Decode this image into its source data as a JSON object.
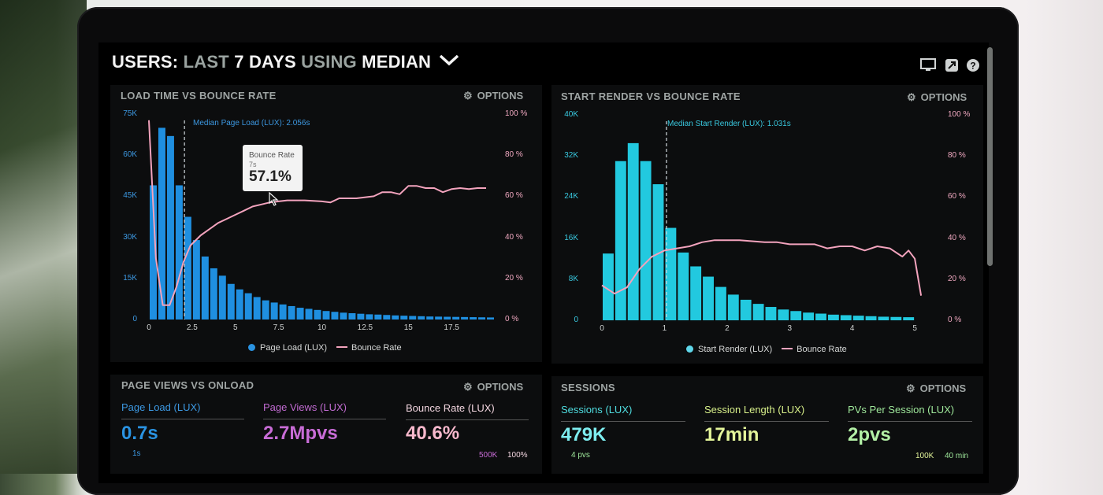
{
  "header": {
    "title_parts": [
      "USERS:",
      "LAST",
      "7 DAYS",
      "USING",
      "MEDIAN"
    ],
    "icons": [
      "monitor-icon",
      "share-icon",
      "help-icon"
    ]
  },
  "colors": {
    "blue": "#1f8fe0",
    "cyan": "#22c9df",
    "pink": "#f3a3bd",
    "purple": "#c86cd6",
    "green": "#9fe89b"
  },
  "panels": {
    "load": {
      "title": "LOAD TIME VS BOUNCE RATE",
      "options": "OPTIONS",
      "median_label": "Median Page Load (LUX): 2.056s",
      "tooltip": {
        "label": "Bounce Rate",
        "sub": "7s",
        "value": "57.1%"
      },
      "legend": [
        "Page Load (LUX)",
        "Bounce Rate"
      ]
    },
    "render": {
      "title": "START RENDER VS BOUNCE RATE",
      "options": "OPTIONS",
      "median_label": "Median Start Render (LUX): 1.031s",
      "legend": [
        "Start Render (LUX)",
        "Bounce Rate"
      ]
    },
    "pageviews": {
      "title": "PAGE VIEWS VS ONLOAD",
      "options": "OPTIONS",
      "metrics": [
        {
          "label": "Page Load (LUX)",
          "value": "0.7s",
          "sub": "1s"
        },
        {
          "label": "Page Views (LUX)",
          "value": "2.7Mpvs"
        },
        {
          "label": "Bounce Rate (LUX)",
          "value": "40.6%"
        }
      ],
      "axis": [
        "500K",
        "100%"
      ]
    },
    "sessions": {
      "title": "SESSIONS",
      "options": "OPTIONS",
      "metrics": [
        {
          "label": "Sessions (LUX)",
          "value": "479K",
          "sub": "4 pvs"
        },
        {
          "label": "Session Length (LUX)",
          "value": "17min"
        },
        {
          "label": "PVs Per Session (LUX)",
          "value": "2pvs"
        }
      ],
      "axis": [
        "100K",
        "40 min"
      ]
    }
  },
  "chart_data": [
    {
      "type": "bar",
      "title": "LOAD TIME VS BOUNCE RATE",
      "x_ticks": [
        "0",
        "2.5",
        "5",
        "7.5",
        "10",
        "12.5",
        "15",
        "17.5"
      ],
      "y_ticks": [
        "0",
        "15K",
        "30K",
        "45K",
        "60K",
        "75K"
      ],
      "y2_ticks": [
        "0 %",
        "20 %",
        "40 %",
        "60 %",
        "80 %",
        "100 %"
      ],
      "xlim": [
        0,
        20
      ],
      "ylim": [
        0,
        75000
      ],
      "y2lim": [
        0,
        100
      ],
      "bin_width": 0.5,
      "series": [
        {
          "name": "Page Load (LUX)",
          "values": [
            49000,
            70000,
            67000,
            49000,
            37500,
            29000,
            23000,
            18700,
            16000,
            13000,
            11000,
            9600,
            8200,
            7000,
            6200,
            5500,
            4900,
            4300,
            3900,
            3500,
            3100,
            2800,
            2500,
            2300,
            2100,
            1900,
            1800,
            1650,
            1500,
            1400,
            1300,
            1200,
            1100,
            1050,
            1000,
            950,
            900,
            850,
            800,
            750
          ]
        },
        {
          "name": "Bounce Rate",
          "x": [
            0,
            0.4,
            0.8,
            1.2,
            1.6,
            2,
            2.4,
            3,
            3.5,
            4,
            4.5,
            5,
            5.5,
            6,
            6.5,
            7,
            7.5,
            8,
            9,
            10,
            10.5,
            11,
            12,
            13,
            13.5,
            14,
            14.5,
            15,
            15.5,
            16,
            16.5,
            17,
            17.5,
            18,
            18.5,
            19,
            19.5
          ],
          "values": [
            97,
            30,
            7,
            7,
            16,
            28,
            36,
            41,
            44,
            47,
            49,
            51,
            53,
            55,
            56,
            57,
            57.5,
            58,
            58,
            57.5,
            57,
            59,
            59,
            60,
            62,
            62,
            61,
            65,
            65,
            64,
            64,
            62,
            63.5,
            64,
            63.5,
            64,
            64
          ]
        }
      ],
      "annotation": {
        "x": 2.056,
        "label": "Median Page Load (LUX): 2.056s"
      },
      "legend": [
        "Page Load (LUX)",
        "Bounce Rate"
      ]
    },
    {
      "type": "bar",
      "title": "START RENDER VS BOUNCE RATE",
      "x_ticks": [
        "0",
        "1",
        "2",
        "3",
        "4",
        "5"
      ],
      "y_ticks": [
        "0",
        "8K",
        "16K",
        "24K",
        "32K",
        "40K"
      ],
      "y2_ticks": [
        "0 %",
        "20 %",
        "40 %",
        "60 %",
        "80 %",
        "100 %"
      ],
      "xlim": [
        0,
        5.25
      ],
      "ylim": [
        0,
        40000
      ],
      "y2lim": [
        0,
        100
      ],
      "bin_width": 0.2,
      "series": [
        {
          "name": "Start Render (LUX)",
          "values": [
            13000,
            31000,
            34500,
            31000,
            26500,
            18000,
            13200,
            10500,
            8500,
            6500,
            5000,
            4000,
            3200,
            2600,
            2100,
            1800,
            1500,
            1300,
            1100,
            1000,
            900,
            800,
            700,
            650,
            600
          ]
        },
        {
          "name": "Bounce Rate",
          "x": [
            0,
            0.2,
            0.4,
            0.6,
            0.8,
            1,
            1.2,
            1.4,
            1.6,
            1.8,
            2,
            2.2,
            2.4,
            2.6,
            2.8,
            3,
            3.2,
            3.4,
            3.6,
            3.8,
            4,
            4.2,
            4.4,
            4.6,
            4.8,
            4.9,
            5,
            5.1
          ],
          "values": [
            17,
            13,
            16,
            25,
            31,
            34,
            35,
            36,
            38,
            39,
            39,
            39,
            38.5,
            38,
            38,
            37,
            37,
            37,
            35,
            36,
            36,
            34,
            36,
            35,
            31,
            34,
            30,
            12
          ]
        }
      ],
      "annotation": {
        "x": 1.031,
        "label": "Median Start Render (LUX): 1.031s"
      },
      "legend": [
        "Start Render (LUX)",
        "Bounce Rate"
      ]
    }
  ]
}
